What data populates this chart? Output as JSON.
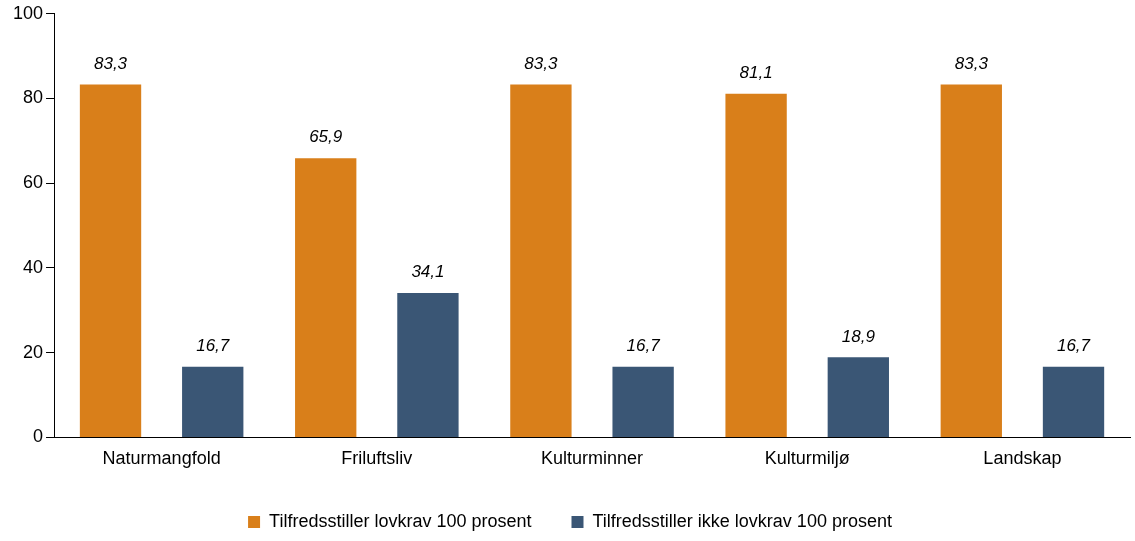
{
  "chart_data": {
    "type": "bar",
    "categories": [
      "Naturmangfold",
      "Friluftsliv",
      "Kulturminner",
      "Kulturmiljø",
      "Landskap"
    ],
    "series": [
      {
        "name": "Tilfredsstiller lovkrav 100 prosent",
        "color": "#d97f1a",
        "values": [
          83.3,
          65.9,
          83.3,
          81.1,
          83.3
        ],
        "value_labels": [
          "83,3",
          "65,9",
          "83,3",
          "81,1",
          "83,3"
        ]
      },
      {
        "name": "Tilfredsstiller ikke lovkrav 100 prosent",
        "color": "#3a5675",
        "values": [
          16.7,
          34.1,
          16.7,
          18.9,
          16.7
        ],
        "value_labels": [
          "16,7",
          "34,1",
          "16,7",
          "18,9",
          "16,7"
        ]
      }
    ],
    "ylim": [
      0,
      100
    ],
    "yticks": [
      0,
      20,
      40,
      60,
      80,
      100
    ],
    "grid": false,
    "legend": "bottom"
  }
}
